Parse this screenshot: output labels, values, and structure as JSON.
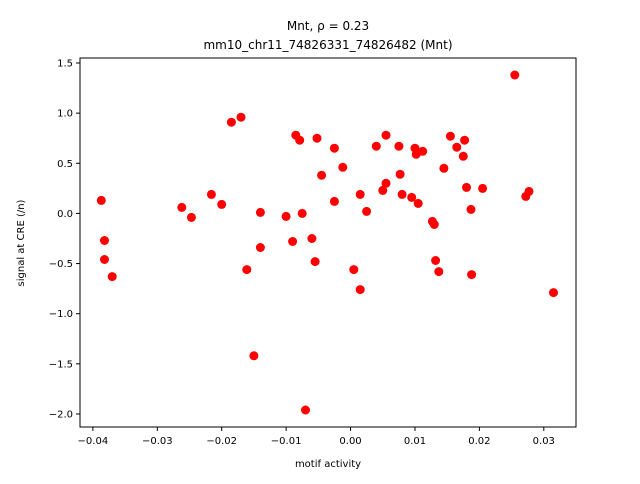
{
  "chart_data": {
    "type": "scatter",
    "title_line1": "Mnt, ρ = 0.23",
    "title_line2": "mm10_chr11_74826331_74826482 (Mnt)",
    "xlabel": "motif activity",
    "ylabel": "signal at CRE (/n)",
    "xlim": [
      -0.042,
      0.035
    ],
    "ylim": [
      -2.13,
      1.55
    ],
    "xticks": [
      -0.04,
      -0.03,
      -0.02,
      -0.01,
      0.0,
      0.01,
      0.02,
      0.03
    ],
    "xtick_labels": [
      "−0.04",
      "−0.03",
      "−0.02",
      "−0.01",
      "0.00",
      "0.01",
      "0.02",
      "0.03"
    ],
    "yticks": [
      -2.0,
      -1.5,
      -1.0,
      -0.5,
      0.0,
      0.5,
      1.0,
      1.5
    ],
    "ytick_labels": [
      "−2.0",
      "−1.5",
      "−1.0",
      "−0.5",
      "0.0",
      "0.5",
      "1.0",
      "1.5"
    ],
    "grid": false,
    "marker_color": "#ff0000",
    "points": [
      {
        "x": -0.0387,
        "y": 0.13
      },
      {
        "x": -0.0382,
        "y": -0.27
      },
      {
        "x": -0.0382,
        "y": -0.46
      },
      {
        "x": -0.037,
        "y": -0.63
      },
      {
        "x": -0.0262,
        "y": 0.06
      },
      {
        "x": -0.0247,
        "y": -0.04
      },
      {
        "x": -0.0216,
        "y": 0.19
      },
      {
        "x": -0.02,
        "y": 0.09
      },
      {
        "x": -0.0185,
        "y": 0.91
      },
      {
        "x": -0.017,
        "y": 0.96
      },
      {
        "x": -0.0161,
        "y": -0.56
      },
      {
        "x": -0.015,
        "y": -1.42
      },
      {
        "x": -0.014,
        "y": 0.01
      },
      {
        "x": -0.014,
        "y": -0.34
      },
      {
        "x": -0.01,
        "y": -0.03
      },
      {
        "x": -0.009,
        "y": -0.28
      },
      {
        "x": -0.0085,
        "y": 0.78
      },
      {
        "x": -0.0079,
        "y": 0.73
      },
      {
        "x": -0.0075,
        "y": 0.0
      },
      {
        "x": -0.007,
        "y": -1.96
      },
      {
        "x": -0.006,
        "y": -0.25
      },
      {
        "x": -0.0055,
        "y": -0.48
      },
      {
        "x": -0.0052,
        "y": 0.75
      },
      {
        "x": -0.0045,
        "y": 0.38
      },
      {
        "x": -0.0025,
        "y": 0.65
      },
      {
        "x": -0.0025,
        "y": 0.12
      },
      {
        "x": -0.0012,
        "y": 0.46
      },
      {
        "x": 0.0005,
        "y": -0.56
      },
      {
        "x": 0.0015,
        "y": 0.19
      },
      {
        "x": 0.0015,
        "y": -0.76
      },
      {
        "x": 0.0025,
        "y": 0.02
      },
      {
        "x": 0.004,
        "y": 0.67
      },
      {
        "x": 0.005,
        "y": 0.23
      },
      {
        "x": 0.0055,
        "y": 0.3
      },
      {
        "x": 0.0055,
        "y": 0.78
      },
      {
        "x": 0.0075,
        "y": 0.67
      },
      {
        "x": 0.0077,
        "y": 0.39
      },
      {
        "x": 0.008,
        "y": 0.19
      },
      {
        "x": 0.0095,
        "y": 0.16
      },
      {
        "x": 0.01,
        "y": 0.65
      },
      {
        "x": 0.0102,
        "y": 0.59
      },
      {
        "x": 0.0105,
        "y": 0.1
      },
      {
        "x": 0.0112,
        "y": 0.62
      },
      {
        "x": 0.0127,
        "y": -0.08
      },
      {
        "x": 0.013,
        "y": -0.11
      },
      {
        "x": 0.0132,
        "y": -0.47
      },
      {
        "x": 0.0137,
        "y": -0.58
      },
      {
        "x": 0.0145,
        "y": 0.45
      },
      {
        "x": 0.0155,
        "y": 0.77
      },
      {
        "x": 0.0165,
        "y": 0.66
      },
      {
        "x": 0.0175,
        "y": 0.57
      },
      {
        "x": 0.0177,
        "y": 0.73
      },
      {
        "x": 0.018,
        "y": 0.26
      },
      {
        "x": 0.0187,
        "y": 0.04
      },
      {
        "x": 0.0188,
        "y": -0.61
      },
      {
        "x": 0.0205,
        "y": 0.25
      },
      {
        "x": 0.0255,
        "y": 1.38
      },
      {
        "x": 0.0272,
        "y": 0.17
      },
      {
        "x": 0.0277,
        "y": 0.22
      },
      {
        "x": 0.0315,
        "y": -0.79
      }
    ]
  }
}
